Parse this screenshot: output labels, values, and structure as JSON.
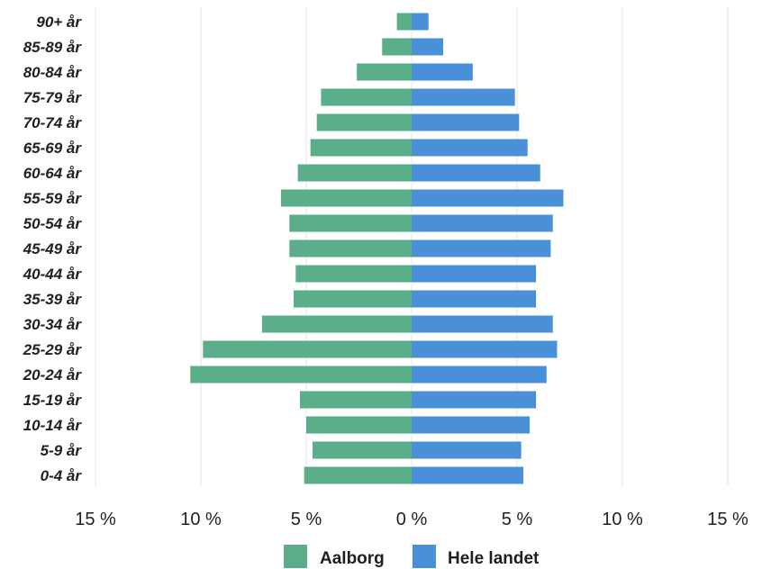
{
  "chart_data": {
    "type": "bar",
    "orientation": "horizontal-population-pyramid",
    "categories": [
      "90+ år",
      "85-89 år",
      "80-84 år",
      "75-79 år",
      "70-74 år",
      "65-69 år",
      "60-64 år",
      "55-59 år",
      "50-54 år",
      "45-49 år",
      "40-44 år",
      "35-39 år",
      "30-34 år",
      "25-29 år",
      "20-24 år",
      "15-19 år",
      "10-14 år",
      "5-9 år",
      "0-4 år"
    ],
    "series": [
      {
        "name": "Aalborg",
        "side": "left",
        "color": "#5aae8a",
        "values": [
          0.7,
          1.4,
          2.6,
          4.3,
          4.5,
          4.8,
          5.4,
          6.2,
          5.8,
          5.8,
          5.5,
          5.6,
          7.1,
          9.9,
          10.5,
          5.3,
          5.0,
          4.7,
          5.1
        ]
      },
      {
        "name": "Hele landet",
        "side": "right",
        "color": "#4a90d9",
        "values": [
          0.8,
          1.5,
          2.9,
          4.9,
          5.1,
          5.5,
          6.1,
          7.2,
          6.7,
          6.6,
          5.9,
          5.9,
          6.7,
          6.9,
          6.4,
          5.9,
          5.6,
          5.2,
          5.3
        ]
      }
    ],
    "xlim": [
      -15,
      15
    ],
    "x_ticks": [
      {
        "value": -15,
        "label": "15 %"
      },
      {
        "value": -10,
        "label": "10 %"
      },
      {
        "value": -5,
        "label": "5 %"
      },
      {
        "value": 0,
        "label": "0 %"
      },
      {
        "value": 5,
        "label": "5 %"
      },
      {
        "value": 10,
        "label": "10 %"
      },
      {
        "value": 15,
        "label": "15 %"
      }
    ],
    "grid": true,
    "legend_position": "bottom-center"
  }
}
